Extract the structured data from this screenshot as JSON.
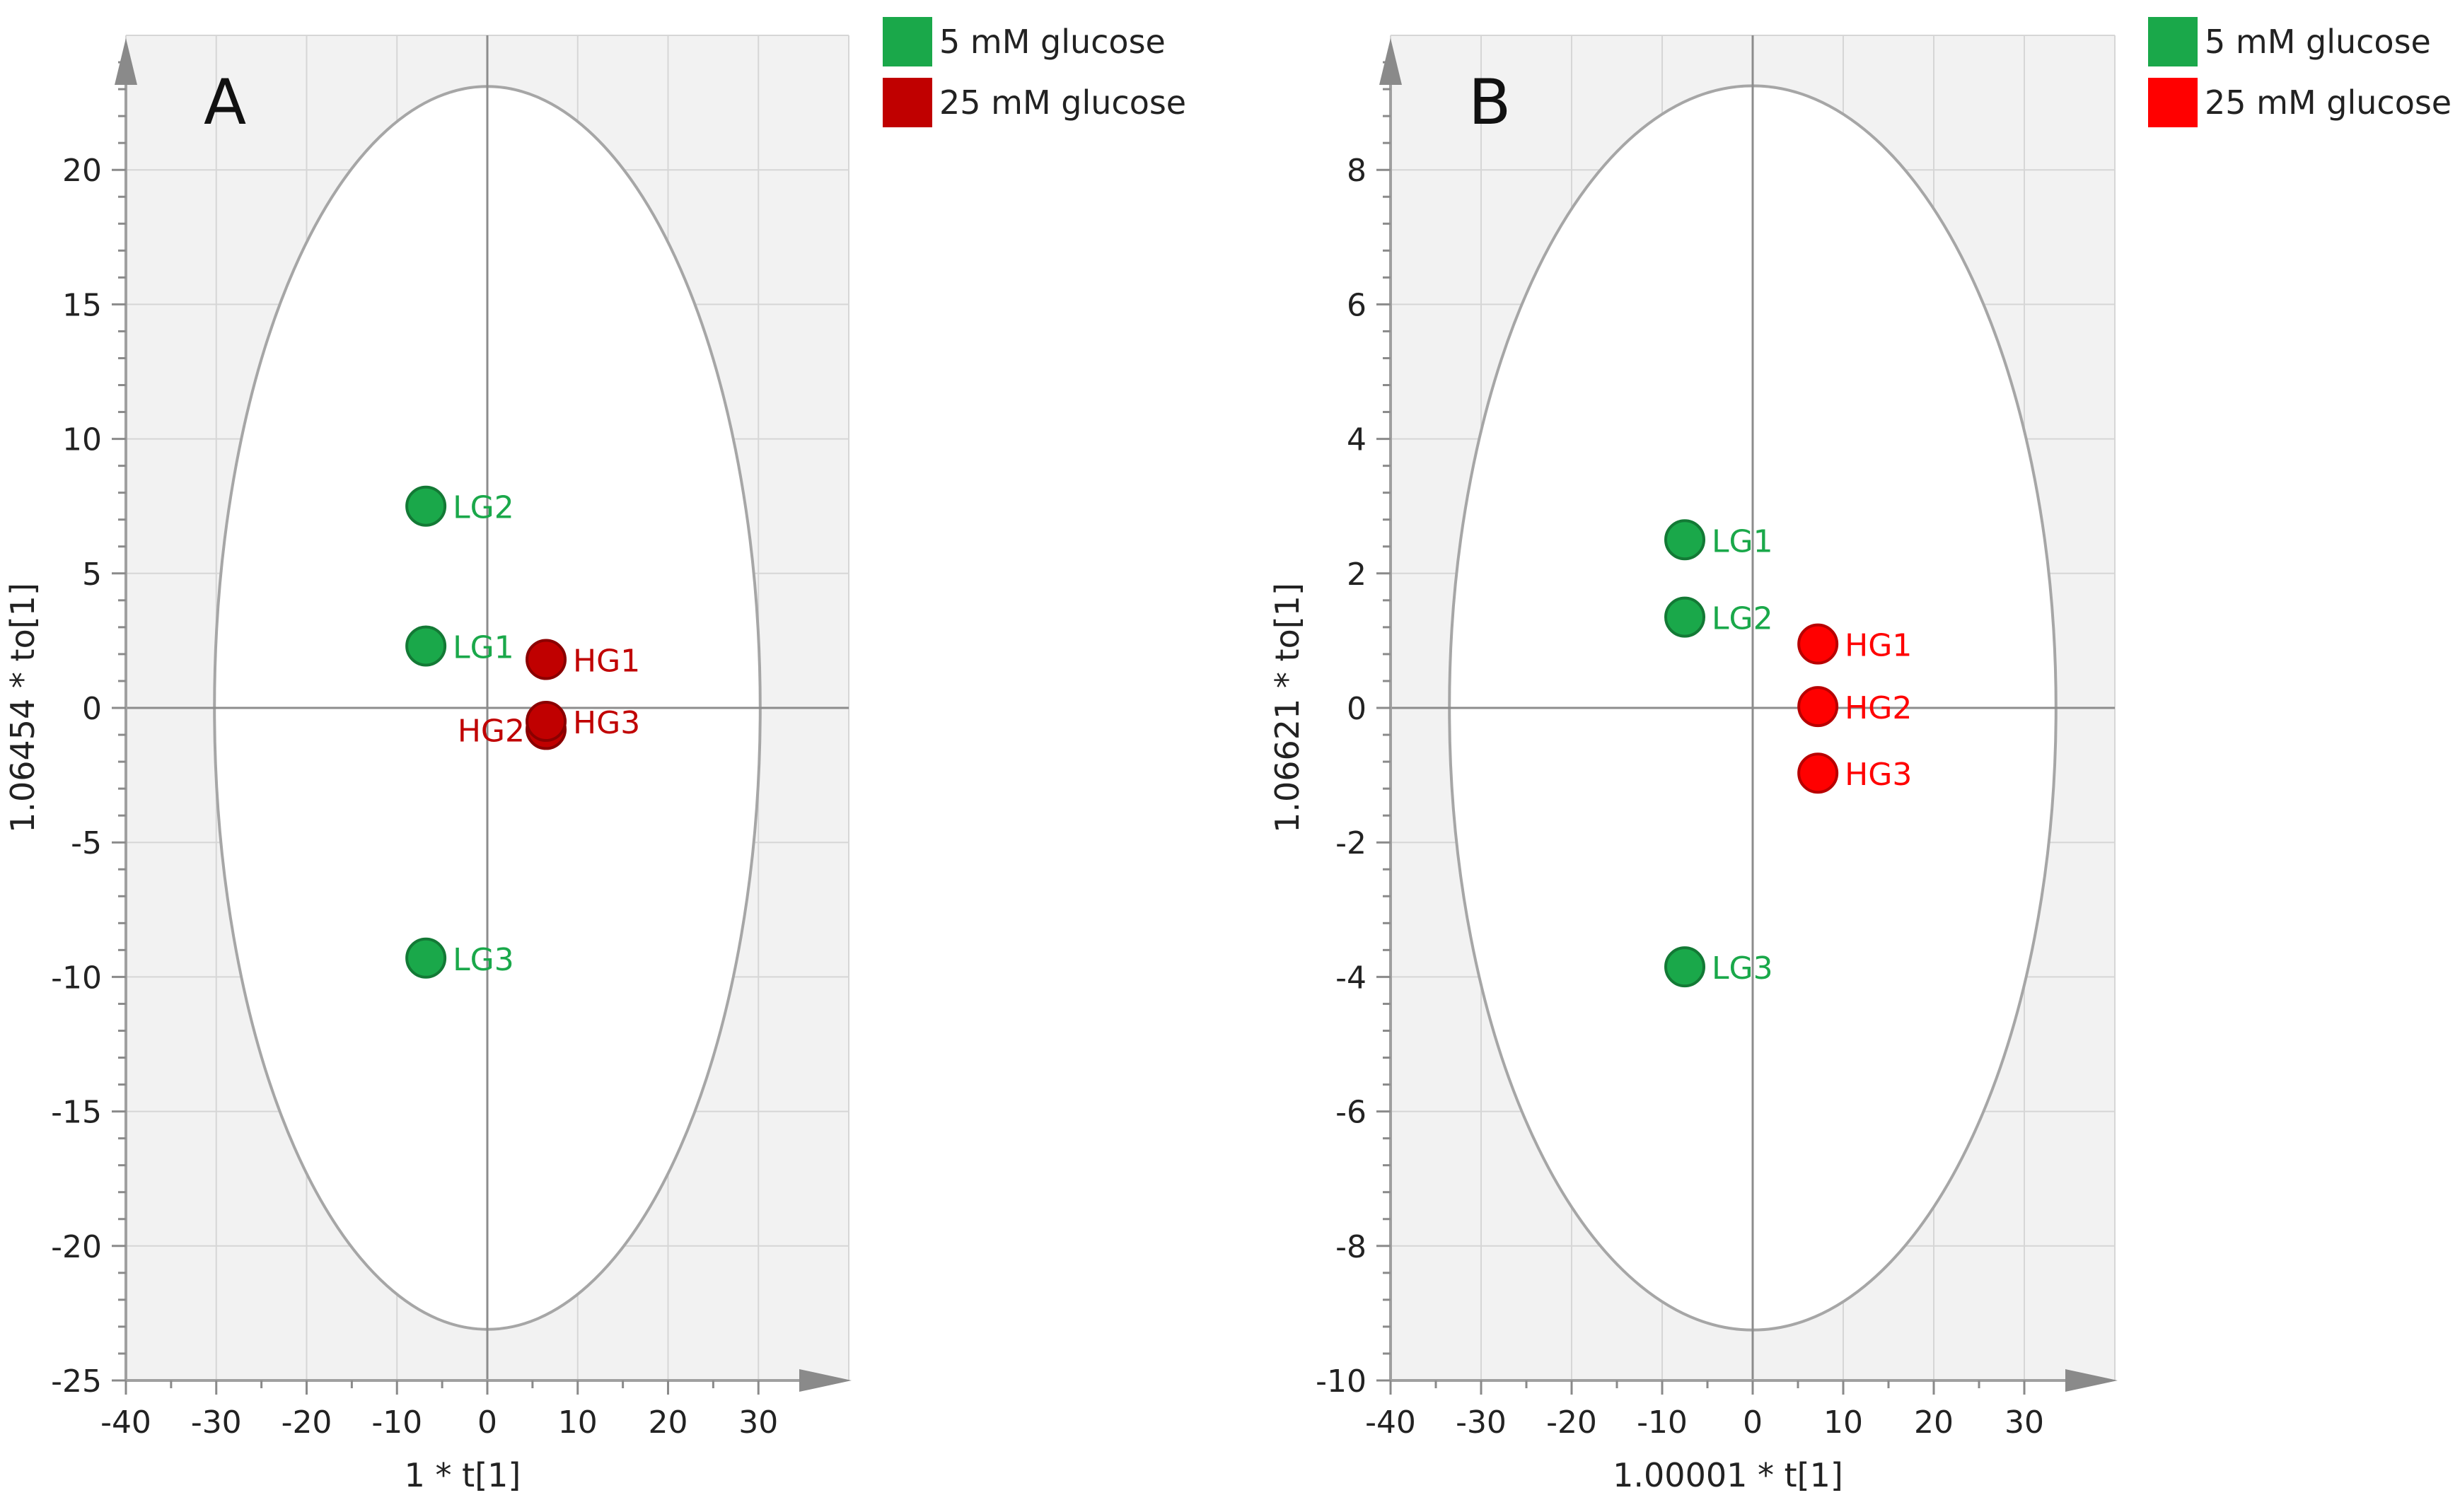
{
  "chart_data": [
    {
      "type": "scatter",
      "panel_label": "A",
      "xlabel": "1 * t[1]",
      "ylabel": "1.06454 * to[1]",
      "xlim": [
        -40,
        40
      ],
      "ylim": [
        -25,
        25
      ],
      "xticks": [
        -40,
        -30,
        -20,
        -10,
        0,
        10,
        20,
        30
      ],
      "yticks": [
        -25,
        -20,
        -15,
        -10,
        -5,
        0,
        5,
        10,
        15,
        20
      ],
      "grid": true,
      "ellipse": {
        "cx": 0,
        "cy": 0,
        "rx": 30.2,
        "ry": 23.1
      },
      "series": [
        {
          "name": "5 mM glucose",
          "color": "#1aa84a",
          "points": [
            {
              "label": "LG1",
              "x": -6.8,
              "y": 2.3
            },
            {
              "label": "LG2",
              "x": -6.8,
              "y": 7.5
            },
            {
              "label": "LG3",
              "x": -6.8,
              "y": -9.3
            }
          ]
        },
        {
          "name": "25 mM glucose",
          "color": "#c00000",
          "points": [
            {
              "label": "HG1",
              "x": 6.5,
              "y": 1.8
            },
            {
              "label": "HG2",
              "x": 6.5,
              "y": -0.8,
              "label_side": "left"
            },
            {
              "label": "HG3",
              "x": 6.5,
              "y": -0.5
            }
          ]
        }
      ],
      "legend": [
        {
          "label": "5 mM glucose",
          "color": "#1aa84a"
        },
        {
          "label": "25 mM glucose",
          "color": "#c00000"
        }
      ]
    },
    {
      "type": "scatter",
      "panel_label": "B",
      "xlabel": "1.00001 * t[1]",
      "ylabel": "1.06621 * to[1]",
      "xlim": [
        -40,
        40
      ],
      "ylim": [
        -10,
        10
      ],
      "xticks": [
        -40,
        -30,
        -20,
        -10,
        0,
        10,
        20,
        30
      ],
      "yticks": [
        -10,
        -8,
        -6,
        -4,
        -2,
        0,
        2,
        4,
        6,
        8
      ],
      "grid": true,
      "ellipse": {
        "cx": 0,
        "cy": 0,
        "rx": 33.5,
        "ry": 9.25
      },
      "series": [
        {
          "name": "5 mM glucose",
          "color": "#1aa84a",
          "points": [
            {
              "label": "LG1",
              "x": -7.5,
              "y": 2.5
            },
            {
              "label": "LG2",
              "x": -7.5,
              "y": 1.35
            },
            {
              "label": "LG3",
              "x": -7.5,
              "y": -3.85
            }
          ]
        },
        {
          "name": "25 mM glucose",
          "color": "#ff0000",
          "points": [
            {
              "label": "HG1",
              "x": 7.2,
              "y": 0.95
            },
            {
              "label": "HG2",
              "x": 7.2,
              "y": 0.02
            },
            {
              "label": "HG3",
              "x": 7.2,
              "y": -0.97
            }
          ]
        }
      ],
      "legend": [
        {
          "label": "5 mM glucose",
          "color": "#1aa84a"
        },
        {
          "label": "25 mM glucose",
          "color": "#ff0000"
        }
      ]
    }
  ]
}
